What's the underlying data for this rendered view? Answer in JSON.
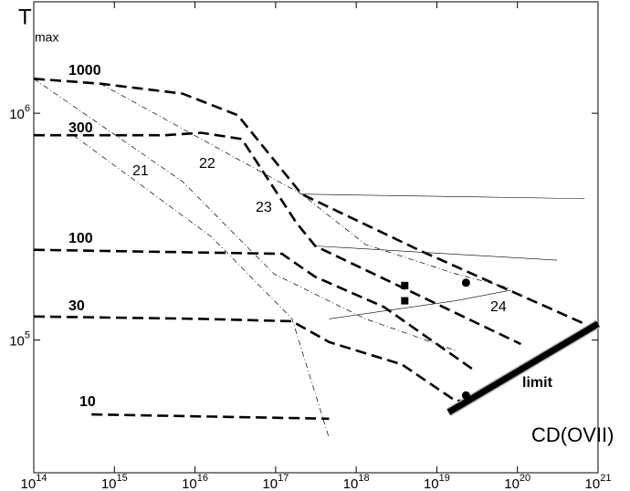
{
  "chart_data": {
    "type": "line",
    "ylabel": {
      "main": "T",
      "sub": "max"
    },
    "xlabel": "CD(OVII)",
    "xscale": "log",
    "yscale": "log",
    "xlim": [
      100000000000000.0,
      1e+21
    ],
    "ylim": [
      26000.0,
      3100000.0
    ],
    "xticks": [
      {
        "value": 100000000000000.0,
        "label": "10^14"
      },
      {
        "value": 1000000000000000.0,
        "label": "10^15"
      },
      {
        "value": 1e+16,
        "label": "10^16"
      },
      {
        "value": 1e+17,
        "label": "10^17"
      },
      {
        "value": 1e+18,
        "label": "10^18"
      },
      {
        "value": 1e+19,
        "label": "10^19"
      },
      {
        "value": 1e+20,
        "label": "10^20"
      },
      {
        "value": 1e+21,
        "label": "10^21"
      }
    ],
    "yticks": [
      {
        "value": 100000.0,
        "label": "10^5"
      },
      {
        "value": 1000000.0,
        "label": "10^6"
      }
    ],
    "series": [
      {
        "name": "1000",
        "style": "dashed",
        "x": [
          100000000000000.0,
          670000000000000.0,
          7000000000000000.0,
          3.4e+16,
          2.1e+17,
          6.2e+18,
          6.8e+20
        ],
        "values": [
          1420000.0,
          1350000.0,
          1220000.0,
          980000.0,
          440000.0,
          248000.0,
          118000.0
        ]
      },
      {
        "name": "300",
        "style": "dashed",
        "x": [
          100000000000000.0,
          4200000000000000.0,
          1.2e+16,
          3.8e+16,
          1.8e+17,
          3.1e+17,
          1.1e+20
        ],
        "values": [
          800000.0,
          800000.0,
          820000.0,
          770000.0,
          330000.0,
          260000.0,
          96000.0
        ]
      },
      {
        "name": "100",
        "style": "dashed",
        "x": [
          100000000000000.0,
          1.2e+17,
          3.1e+17,
          2.2e+18,
          3e+19
        ],
        "values": [
          250000.0,
          240000.0,
          190000.0,
          140000.0,
          73000.0
        ]
      },
      {
        "name": "30",
        "style": "dashed",
        "x": [
          100000000000000.0,
          1.2e+16,
          1.6e+17,
          4.6e+17,
          3.7e+18,
          1.7e+19,
          2.3e+19
        ],
        "values": [
          127000.0,
          124000.0,
          121000.0,
          98000.0,
          78000.0,
          54000.0,
          54000.0
        ]
      },
      {
        "name": "10",
        "style": "dashed",
        "x": [
          520000000000000.0,
          4.6e+17
        ],
        "values": [
          47000.0,
          45000.0
        ]
      },
      {
        "name": "21",
        "style": "dashdot",
        "x": [
          310000000000000.0,
          1.6e+16,
          1.6e+17,
          4.6e+17
        ],
        "values": [
          800000.0,
          285000.0,
          124000.0,
          37000.0
        ]
      },
      {
        "name": "22",
        "style": "dashdot",
        "x": [
          100000000000000.0,
          7000000000000000.0,
          9.5e+16,
          1.3e+18,
          1.7e+19
        ],
        "values": [
          1420000.0,
          500000.0,
          196000.0,
          124000.0,
          90000.0
        ]
      },
      {
        "name": "23",
        "style": "dashdot",
        "x": [
          670000000000000.0,
          2.1e+17,
          1.3e+18,
          1.7e+19,
          8.3e+19
        ],
        "values": [
          1350000.0,
          440000.0,
          264000.0,
          196000.0,
          169000.0
        ]
      },
      {
        "name": "24",
        "style": "thin",
        "x": [
          4.6e+17,
          1.7e+19,
          8.3e+19
        ],
        "values": [
          124000.0,
          149000.0,
          166000.0
        ]
      },
      {
        "name": "limit",
        "style": "thick",
        "x": [
          1.4e+19,
          1e+21
        ],
        "values": [
          48000.0,
          118000.0
        ]
      },
      {
        "style": "thin",
        "x": [
          2.1e+17,
          6.8e+20
        ],
        "values": [
          440000.0,
          420000.0
        ]
      },
      {
        "style": "thin",
        "x": [
          3.1e+17,
          3.1e+20
        ],
        "values": [
          260000.0,
          225000.0
        ]
      },
      {
        "style": "circle",
        "x": [
          2.3e+19,
          2.3e+19
        ],
        "values": [
          179000.0,
          57000.0
        ]
      },
      {
        "style": "square",
        "x": [
          4e+18,
          4e+18
        ],
        "values": [
          174000.0,
          149000.0
        ]
      }
    ]
  }
}
